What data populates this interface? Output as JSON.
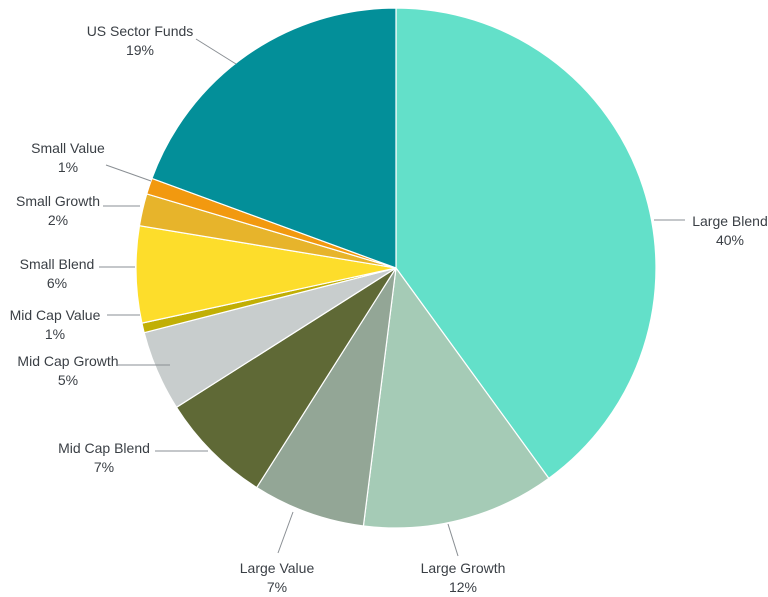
{
  "chart_data": {
    "type": "pie",
    "title": "",
    "slices": [
      {
        "label": "Large Blend",
        "value": 40,
        "value_label": "40%",
        "color": "#63e0c9"
      },
      {
        "label": "Large Growth",
        "value": 12,
        "value_label": "12%",
        "color": "#a5cbb6"
      },
      {
        "label": "Large Value",
        "value": 7,
        "value_label": "7%",
        "color": "#93a696"
      },
      {
        "label": "Mid Cap Blend",
        "value": 7,
        "value_label": "7%",
        "color": "#5f6936"
      },
      {
        "label": "Mid Cap Growth",
        "value": 5,
        "value_label": "5%",
        "color": "#c8cdcd"
      },
      {
        "label": "Mid Cap Value",
        "value": 0.6,
        "value_label": "1%",
        "color": "#c1af05"
      },
      {
        "label": "Small Blend",
        "value": 6,
        "value_label": "6%",
        "color": "#fddd2b"
      },
      {
        "label": "Small Growth",
        "value": 2,
        "value_label": "2%",
        "color": "#e7b42b"
      },
      {
        "label": "Small Value",
        "value": 1,
        "value_label": "1%",
        "color": "#f2990f"
      },
      {
        "label": "US Sector Funds",
        "value": 19.4,
        "value_label": "19%",
        "color": "#038f99"
      }
    ]
  }
}
